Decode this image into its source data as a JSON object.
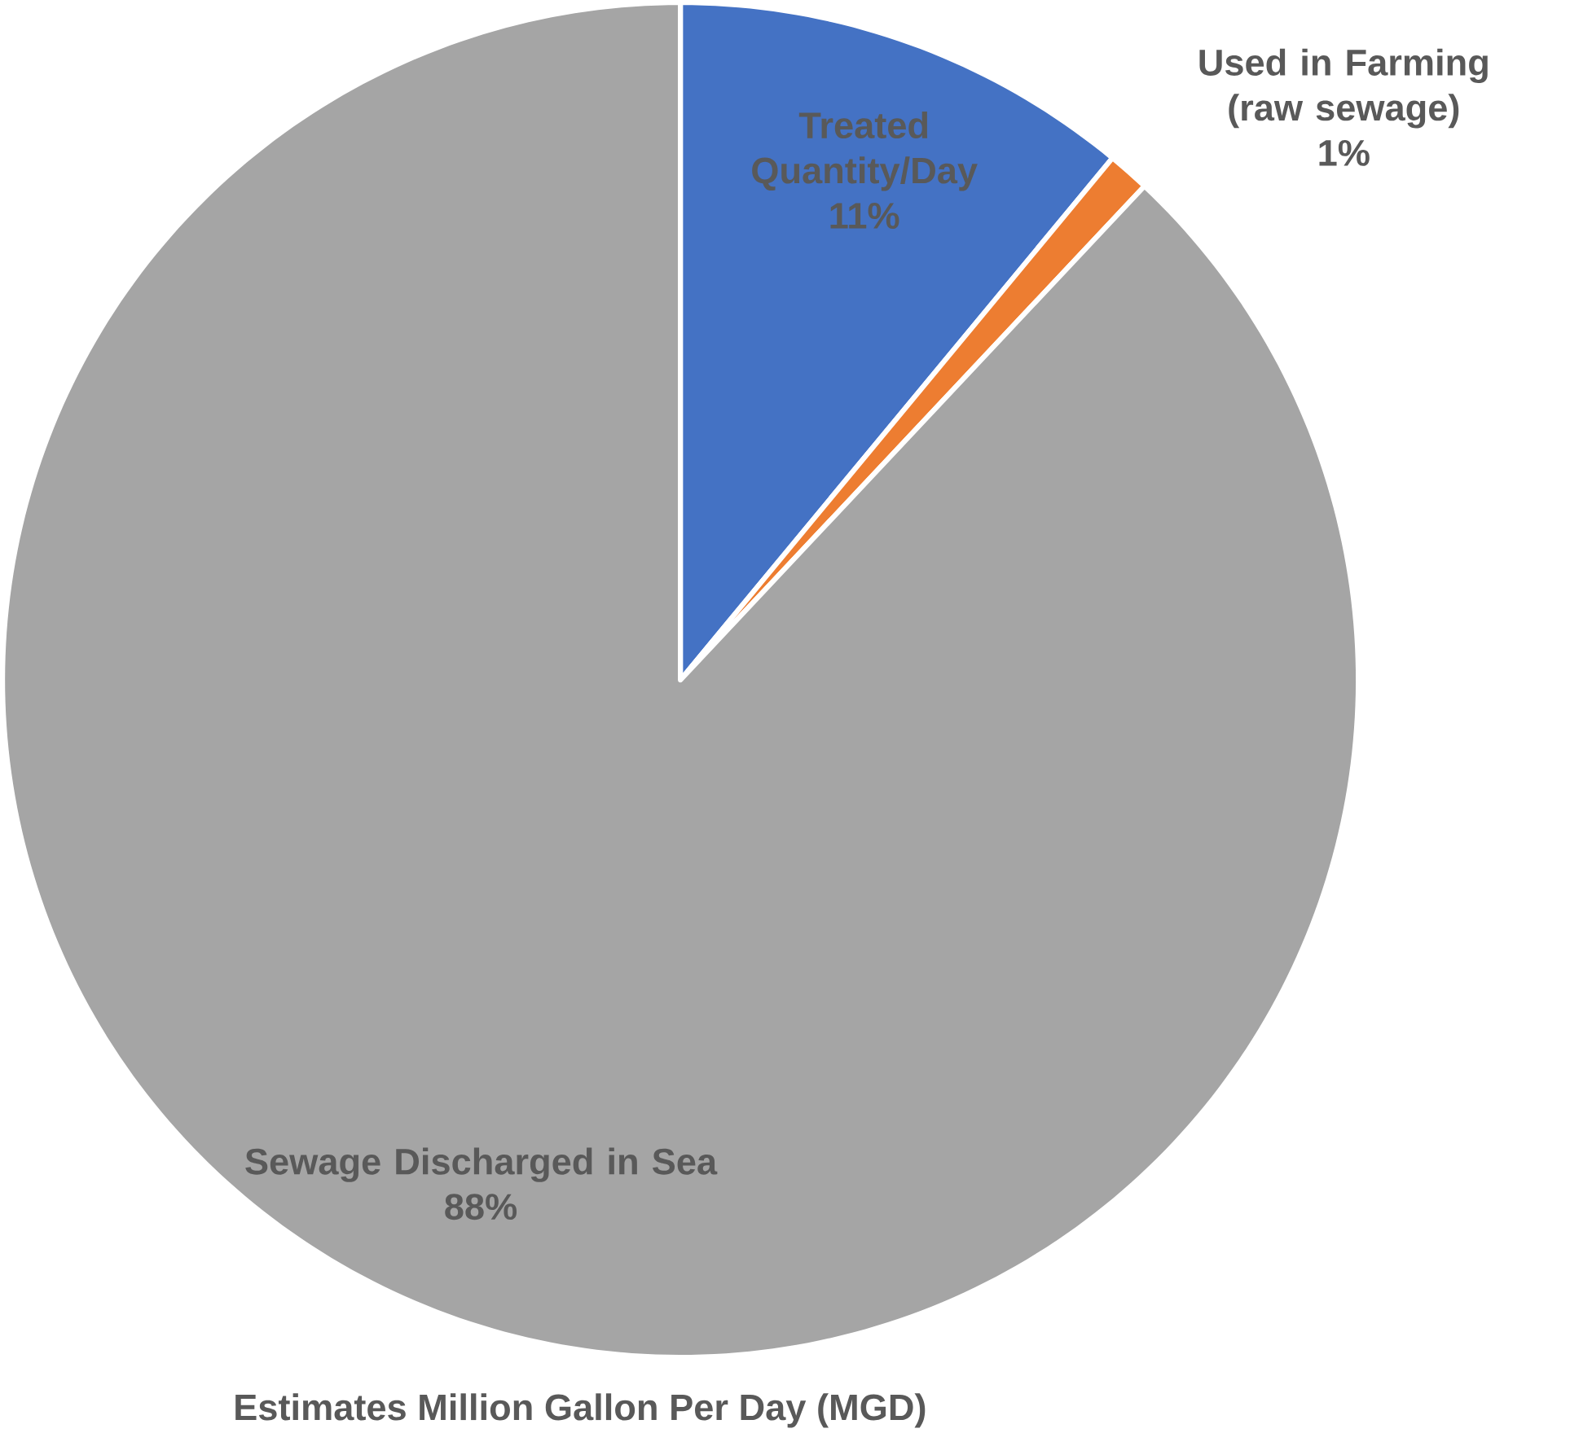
{
  "chart_data": {
    "type": "pie",
    "title": "Estimates Million Gallon Per Day (MGD)",
    "categories": [
      "Treated Quantity/Day",
      "Used in Farming (raw sewage)",
      "Sewage Discharged in Sea"
    ],
    "values": [
      11,
      1,
      88
    ],
    "value_labels": [
      "11%",
      "1%",
      "88%"
    ],
    "colors": [
      "#4472c4",
      "#ed7d31",
      "#a5a5a5"
    ]
  }
}
